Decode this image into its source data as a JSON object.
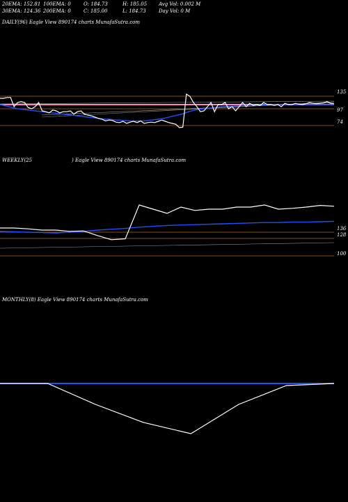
{
  "header": {
    "ema20": "20EMA: 152.81",
    "ema100": "100EMA: 0",
    "open": "O: 184.73",
    "high": "H: 185.05",
    "avgvol": "Avg Vol: 0.002  M",
    "ema30": "30EMA: 124.36",
    "ema200": "200EMA: 0",
    "close": "C: 185.00",
    "low": "L: 184.73",
    "dayvol": "Day Vol: 0  M"
  },
  "panels": {
    "daily": "DAILY(96) Eagle  View  890174  charts MunafaSutra.com",
    "weekly_left": "WEEKLY(25",
    "weekly_right": ") Eagle  View  890174  charts MunafaSutra.com",
    "monthly": "MONTHLY(8) Eagle  View  890174  charts MunafaSutra.com"
  },
  "colors": {
    "price": "#ffffff",
    "ema": "#1f4fff",
    "level": "#b5651d",
    "ma_pink": "#ff7fbf"
  },
  "chart_data": [
    {
      "type": "line",
      "panel": "daily",
      "levels": [
        "135",
        "97",
        "74"
      ],
      "price": [
        150,
        150,
        152,
        152,
        130,
        140,
        142,
        140,
        128,
        125,
        130,
        140,
        120,
        118,
        115,
        122,
        120,
        115,
        118,
        118,
        120,
        112,
        118,
        120,
        112,
        110,
        108,
        105,
        102,
        100,
        96,
        98,
        97,
        93,
        92,
        95,
        90,
        93,
        95,
        92,
        96,
        90,
        92,
        93,
        92,
        95,
        98,
        95,
        92,
        90,
        88,
        80,
        81,
        160,
        155,
        140,
        130,
        118,
        120,
        130,
        140,
        118,
        135,
        135,
        140,
        125,
        130,
        120,
        130,
        140,
        130,
        138,
        133,
        135,
        133,
        140,
        135,
        135,
        133,
        135,
        130,
        138,
        135,
        135,
        138,
        136,
        135,
        137,
        140,
        138,
        137,
        138,
        139,
        142,
        138,
        137
      ],
      "ema": [
        135,
        133,
        131,
        129,
        127,
        125,
        124,
        123,
        122,
        121,
        120,
        119,
        118,
        117,
        116,
        115,
        114,
        113,
        112,
        111,
        110,
        109,
        108,
        107,
        106,
        105,
        104,
        103,
        102,
        101,
        100,
        100,
        99,
        98,
        98,
        97,
        97,
        96,
        96,
        96,
        96,
        96,
        97,
        98,
        99,
        100,
        101,
        103,
        105,
        107,
        109,
        111,
        113,
        116,
        119,
        121,
        123,
        124,
        125,
        126,
        127,
        128,
        129,
        130,
        130,
        131,
        131,
        132,
        132,
        133,
        133,
        133,
        134,
        134,
        134,
        134,
        135,
        135,
        135,
        135,
        135,
        135,
        135,
        135,
        135,
        135,
        135,
        135,
        135,
        135,
        135,
        135,
        135,
        135,
        135,
        135
      ]
    },
    {
      "type": "line",
      "panel": "weekly",
      "levels": [
        "136",
        "128",
        "100"
      ],
      "price": [
        130,
        130,
        128,
        125,
        125,
        122,
        123,
        112,
        102,
        104,
        185,
        175,
        165,
        180,
        172,
        175,
        175,
        180,
        180,
        185,
        175,
        177,
        180,
        184,
        182
      ],
      "ema": [
        122,
        121,
        120,
        119,
        118,
        120,
        122,
        125,
        127,
        129,
        132,
        134,
        136,
        137,
        138,
        139,
        140,
        141,
        142,
        143,
        143,
        144,
        144,
        145,
        146
      ]
    },
    {
      "type": "line",
      "panel": "monthly",
      "price": [
        150,
        150,
        100,
        57,
        30,
        100,
        145,
        150
      ],
      "ema": [
        150,
        150,
        150,
        150,
        150,
        150,
        150,
        150
      ]
    }
  ]
}
